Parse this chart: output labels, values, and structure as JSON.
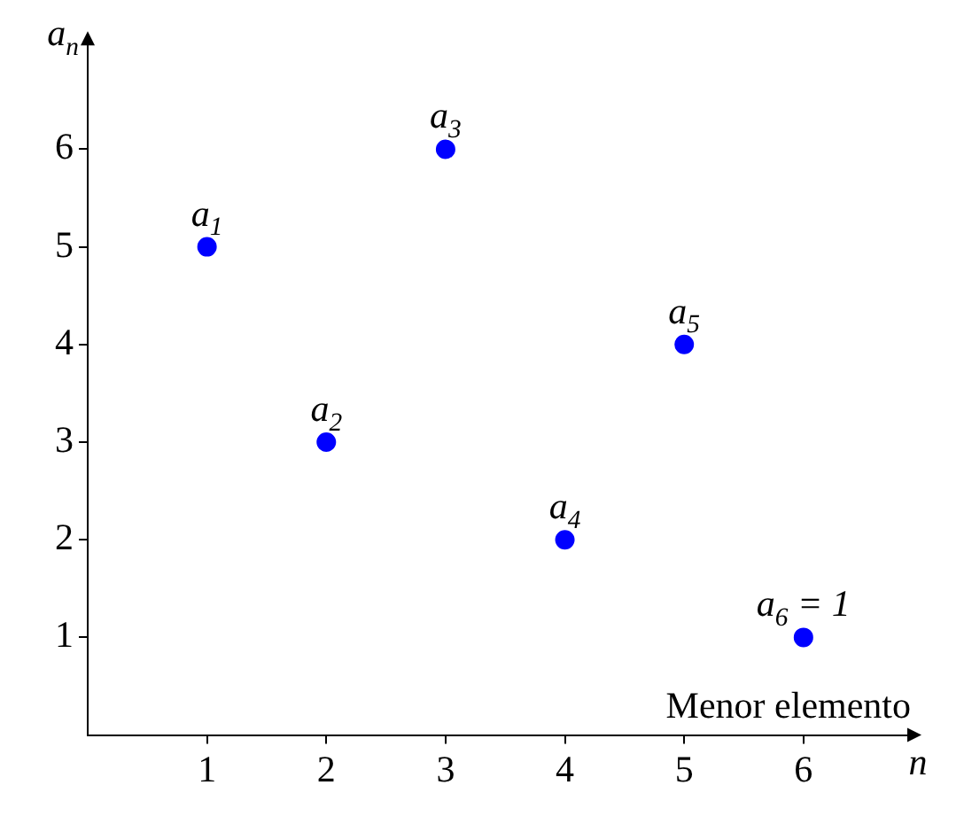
{
  "chart_data": {
    "type": "scatter",
    "xlabel": "n",
    "ylabel": "a$_{n}$",
    "x": [
      1,
      2,
      3,
      4,
      5,
      6
    ],
    "series": [
      {
        "color": "#0000ff",
        "values": [
          5,
          3,
          6,
          2,
          4,
          1
        ]
      }
    ],
    "xlim": [
      0,
      6.9
    ],
    "ylim": [
      0,
      7.1
    ],
    "xticks": [
      1,
      2,
      3,
      4,
      5,
      6
    ],
    "yticks": [
      1,
      2,
      3,
      4,
      5,
      6
    ],
    "marker": "circle",
    "annotations": [
      {
        "text": "a$_{1}$",
        "x": 1,
        "y": 5
      },
      {
        "text": "a$_{2}$",
        "x": 2,
        "y": 3
      },
      {
        "text": "a$_{3}$",
        "x": 3,
        "y": 6
      },
      {
        "text": "a$_{4}$",
        "x": 4,
        "y": 2
      },
      {
        "text": "a$_{5}$",
        "x": 5,
        "y": 4
      },
      {
        "text": "a$_{6}$ = 1",
        "x": 6,
        "y": 1
      },
      "Menor elemento"
    ]
  }
}
